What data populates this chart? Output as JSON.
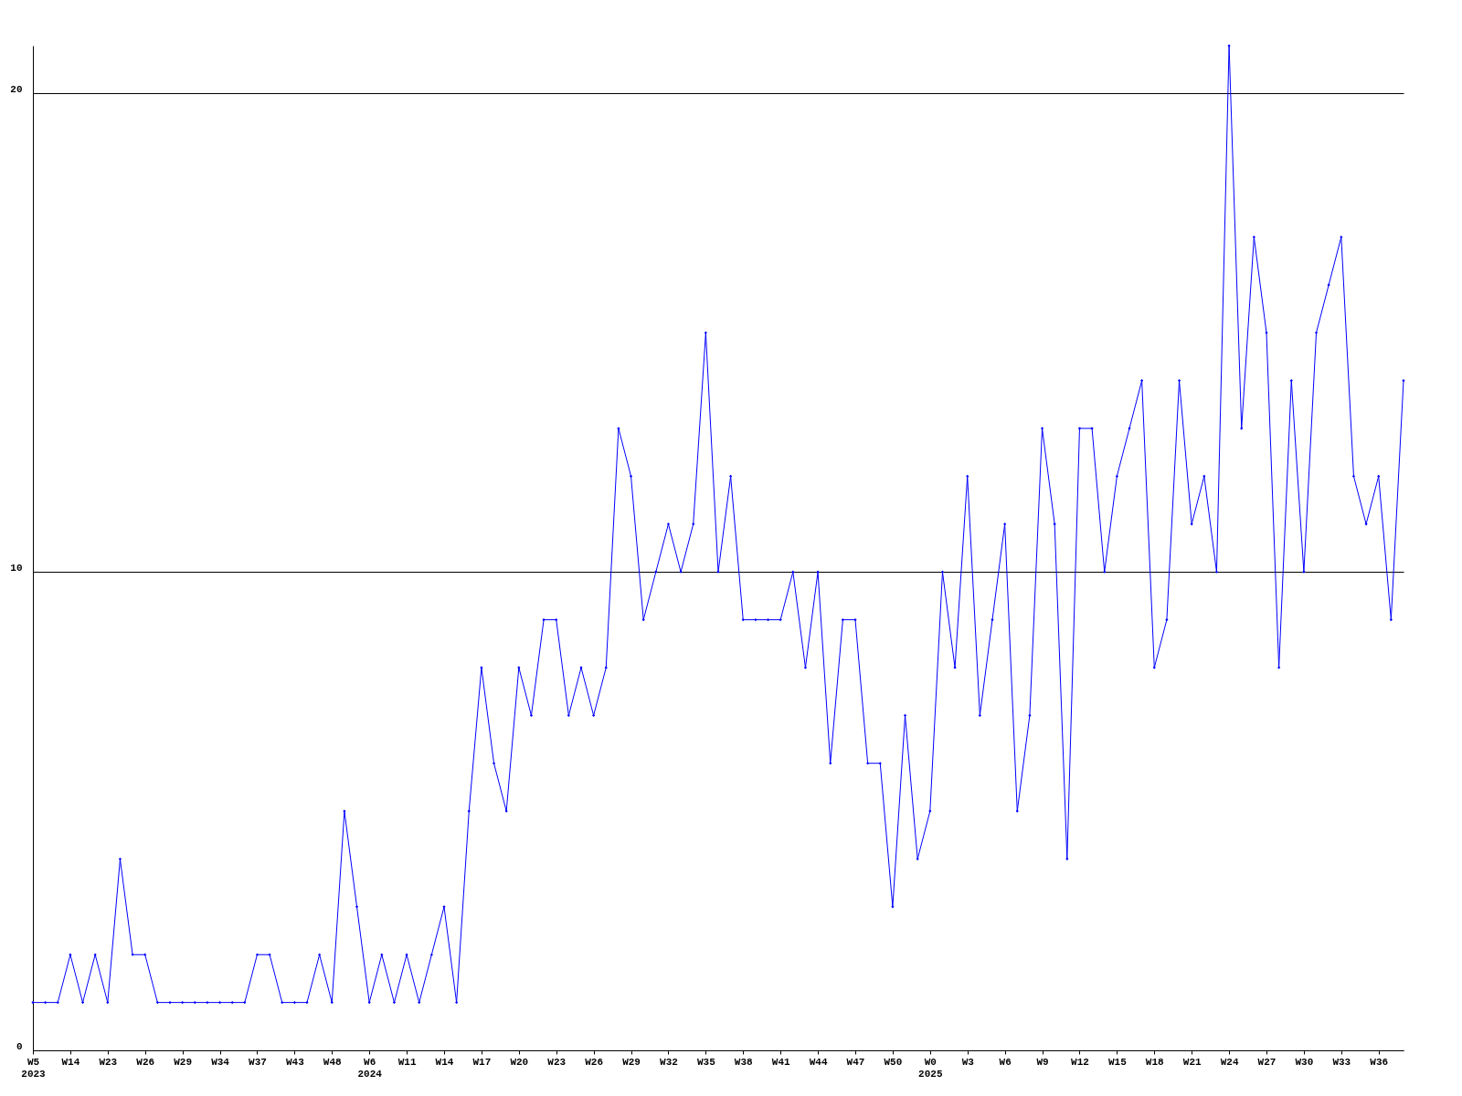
{
  "chart_data": {
    "type": "line",
    "categories": [
      "W5\n2023",
      null,
      null,
      "W14",
      null,
      null,
      "W23",
      null,
      null,
      "W26",
      null,
      null,
      "W29",
      null,
      null,
      "W34",
      null,
      null,
      "W37",
      null,
      null,
      "W43",
      null,
      null,
      "W48",
      null,
      null,
      "W6\n2024",
      null,
      null,
      "W11",
      null,
      null,
      "W14",
      null,
      null,
      "W17",
      null,
      null,
      "W20",
      null,
      null,
      "W23",
      null,
      null,
      "W26",
      null,
      null,
      "W29",
      null,
      null,
      "W32",
      null,
      null,
      "W35",
      null,
      null,
      "W38",
      null,
      null,
      "W41",
      null,
      null,
      "W44",
      null,
      null,
      "W47",
      null,
      null,
      "W50",
      null,
      null,
      "W0\n2025",
      null,
      null,
      "W3",
      null,
      null,
      "W6",
      null,
      null,
      "W9",
      null,
      null,
      "W12",
      null,
      null,
      "W15",
      null,
      null,
      "W18",
      null,
      null,
      "W21",
      null,
      null,
      "W24",
      null,
      null,
      "W27",
      null,
      null,
      "W30",
      null,
      null,
      "W33",
      null,
      null,
      "W36",
      null,
      null
    ],
    "series": [
      {
        "color": "#0000ff",
        "values": [
          1,
          1,
          1,
          2,
          1,
          2,
          1,
          4,
          2,
          2,
          1,
          1,
          1,
          1,
          1,
          1,
          1,
          1,
          2,
          2,
          1,
          1,
          1,
          2,
          1,
          5,
          3,
          1,
          2,
          1,
          2,
          1,
          2,
          3,
          1,
          5,
          8,
          6,
          5,
          8,
          7,
          9,
          9,
          7,
          8,
          7,
          8,
          13,
          12,
          9,
          10,
          11,
          10,
          11,
          15,
          10,
          12,
          9,
          9,
          9,
          9,
          10,
          8,
          10,
          6,
          9,
          9,
          6,
          6,
          3,
          7,
          4,
          5,
          10,
          8,
          12,
          7,
          9,
          11,
          5,
          7,
          13,
          11,
          4,
          13,
          13,
          10,
          12,
          13,
          14,
          8,
          9,
          14,
          11,
          12,
          10,
          21,
          13,
          17,
          15,
          8,
          14,
          10,
          15,
          16,
          17,
          12,
          11,
          12,
          9,
          14
        ]
      }
    ],
    "ylim": [
      0,
      21
    ],
    "yticks": [
      0,
      10,
      20
    ],
    "grid": "y",
    "marker": "diamond",
    "line_style": "solid"
  }
}
